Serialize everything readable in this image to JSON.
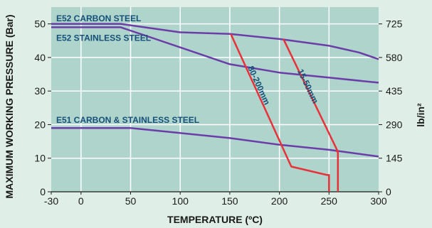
{
  "chart_data": {
    "type": "line",
    "title": "",
    "xlabel": "TEMPERATURE (ºC)",
    "ylabel": "MAXIMUM WORKING PRESSURE (Bar)",
    "y2label": "lb/in²",
    "xlim": [
      -30,
      300
    ],
    "ylim": [
      0,
      55
    ],
    "x_ticks": [
      -30,
      0,
      50,
      100,
      150,
      200,
      250,
      300
    ],
    "y_ticks": [
      0,
      10,
      20,
      30,
      40,
      50
    ],
    "y2_ticks": [
      {
        "label": "0",
        "bar": 0
      },
      {
        "label": "145",
        "bar": 10
      },
      {
        "label": "290",
        "bar": 20
      },
      {
        "label": "435",
        "bar": 30
      },
      {
        "label": "580",
        "bar": 40
      },
      {
        "label": "725",
        "bar": 50
      }
    ],
    "grid": true,
    "series": [
      {
        "name": "E52 CARBON STEEL",
        "color": "#6a3da8",
        "x": [
          -30,
          40,
          100,
          150,
          200,
          250,
          280,
          300
        ],
        "y": [
          50,
          50,
          47.5,
          47,
          45.5,
          43.5,
          41.5,
          39.5
        ],
        "label_path": "straight",
        "label_at": [
          -25,
          50.8
        ]
      },
      {
        "name": "E52 STAINLESS STEEL",
        "color": "#6a3da8",
        "x": [
          -30,
          40,
          70,
          100,
          130,
          150,
          200,
          250,
          300
        ],
        "y": [
          49,
          49,
          46,
          43,
          40,
          38,
          35.5,
          34,
          32.5
        ],
        "label_path": "curve",
        "label_at": [
          -25,
          45
        ]
      },
      {
        "name": "E51 CARBON & STAINLESS STEEL",
        "color": "#6a3da8",
        "x": [
          -30,
          50,
          100,
          150,
          200,
          250,
          300
        ],
        "y": [
          19,
          19,
          17.5,
          16,
          14,
          12.5,
          10.5
        ],
        "label_path": "curve",
        "label_at": [
          -25,
          20.5
        ]
      },
      {
        "name": "80-200mm",
        "color": "#e8323a",
        "x": [
          151,
          212,
          248,
          250,
          250
        ],
        "y": [
          47,
          7.5,
          5,
          5,
          0
        ],
        "label_path": "diag",
        "label_at": [
          168,
          37
        ]
      },
      {
        "name": "15-50mm",
        "color": "#e8323a",
        "x": [
          204,
          258,
          258,
          259,
          259
        ],
        "y": [
          45.5,
          12.5,
          12,
          12,
          0
        ],
        "label_path": "diag",
        "label_at": [
          218,
          36
        ]
      }
    ]
  }
}
